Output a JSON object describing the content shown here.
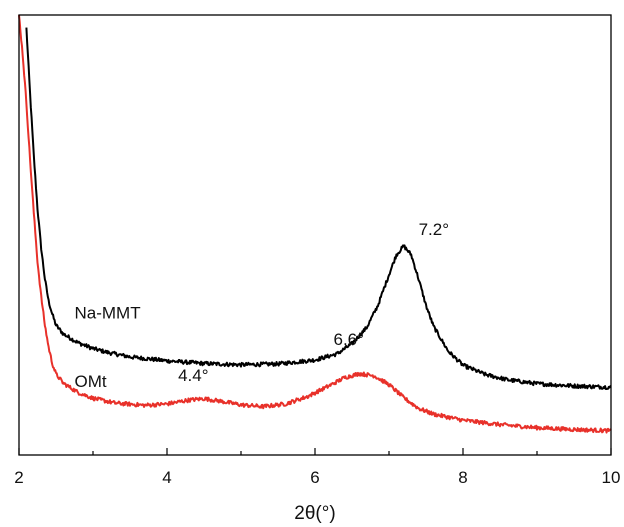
{
  "chart_data": {
    "type": "line",
    "xlabel": "2θ(°)",
    "ylabel": "",
    "xlim": [
      2,
      10
    ],
    "xticks": [
      "2",
      "4",
      "6",
      "8",
      "10"
    ],
    "y_axis_ticks_labeled": false,
    "grid": false,
    "legend": "none",
    "series": [
      {
        "name": "Na-MMT",
        "color": "#000000",
        "points": [
          [
            2.1,
            97
          ],
          [
            2.15,
            82
          ],
          [
            2.2,
            68
          ],
          [
            2.25,
            56
          ],
          [
            2.3,
            47
          ],
          [
            2.35,
            40
          ],
          [
            2.4,
            35
          ],
          [
            2.45,
            32
          ],
          [
            2.5,
            29.5
          ],
          [
            2.6,
            27.5
          ],
          [
            2.8,
            25.5
          ],
          [
            3.0,
            24.2
          ],
          [
            3.2,
            23.3
          ],
          [
            3.5,
            22.3
          ],
          [
            4.0,
            21.4
          ],
          [
            4.5,
            20.8
          ],
          [
            5.0,
            20.5
          ],
          [
            5.5,
            20.7
          ],
          [
            6.0,
            21.6
          ],
          [
            6.3,
            23.0
          ],
          [
            6.5,
            25.3
          ],
          [
            6.7,
            29.0
          ],
          [
            6.85,
            34.0
          ],
          [
            7.0,
            41.0
          ],
          [
            7.1,
            45.5
          ],
          [
            7.2,
            47.5
          ],
          [
            7.3,
            45.5
          ],
          [
            7.4,
            40.0
          ],
          [
            7.5,
            34.0
          ],
          [
            7.6,
            29.3
          ],
          [
            7.8,
            23.6
          ],
          [
            8.0,
            20.4
          ],
          [
            8.3,
            18.3
          ],
          [
            8.6,
            17.1
          ],
          [
            9.0,
            16.2
          ],
          [
            9.5,
            15.7
          ],
          [
            10.0,
            15.4
          ]
        ]
      },
      {
        "name": "OMt",
        "color": "#e8312a",
        "points": [
          [
            2.0,
            100
          ],
          [
            2.05,
            91
          ],
          [
            2.1,
            80
          ],
          [
            2.15,
            67
          ],
          [
            2.2,
            55
          ],
          [
            2.25,
            44
          ],
          [
            2.3,
            36
          ],
          [
            2.35,
            29.5
          ],
          [
            2.4,
            24.5
          ],
          [
            2.45,
            20.8
          ],
          [
            2.5,
            18.4
          ],
          [
            2.6,
            16.3
          ],
          [
            2.8,
            14.2
          ],
          [
            3.0,
            12.9
          ],
          [
            3.3,
            11.8
          ],
          [
            3.7,
            11.3
          ],
          [
            4.0,
            11.6
          ],
          [
            4.3,
            12.5
          ],
          [
            4.5,
            12.8
          ],
          [
            4.7,
            12.3
          ],
          [
            5.0,
            11.4
          ],
          [
            5.3,
            11.0
          ],
          [
            5.6,
            11.6
          ],
          [
            5.9,
            13.3
          ],
          [
            6.2,
            15.8
          ],
          [
            6.4,
            17.6
          ],
          [
            6.6,
            18.5
          ],
          [
            6.8,
            18.0
          ],
          [
            7.0,
            16.0
          ],
          [
            7.2,
            13.0
          ],
          [
            7.4,
            10.6
          ],
          [
            7.6,
            9.3
          ],
          [
            8.0,
            7.9
          ],
          [
            8.5,
            6.9
          ],
          [
            9.0,
            6.2
          ],
          [
            9.5,
            5.8
          ],
          [
            10.0,
            5.5
          ]
        ]
      }
    ],
    "annotations": [
      {
        "text": "7.2°",
        "x": 7.2,
        "y": 47.5
      },
      {
        "text": "6.6°",
        "x": 6.6,
        "y": 18.5
      },
      {
        "text": "4.4°",
        "x": 4.4,
        "y": 12.8
      }
    ]
  }
}
